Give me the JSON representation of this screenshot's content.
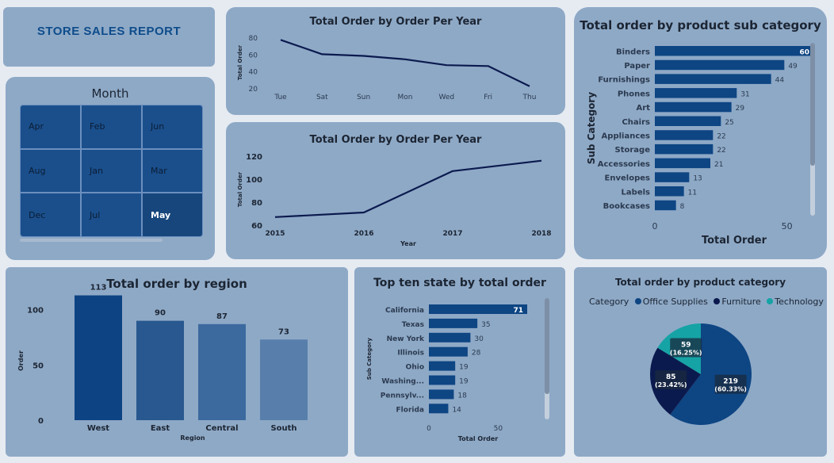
{
  "header": {
    "title": "STORE SALES REPORT"
  },
  "month_slicer": {
    "title": "Month",
    "cells": [
      "Apr",
      "Feb",
      "Jun",
      "Aug",
      "Jan",
      "Mar",
      "Dec",
      "Jul",
      "May"
    ],
    "selected": "May"
  },
  "chart_data": [
    {
      "id": "weekday",
      "type": "line",
      "title": "Total Order by Order Per Year",
      "xlabel": "",
      "ylabel": "Total Order",
      "categories": [
        "Tue",
        "Sat",
        "Sun",
        "Mon",
        "Wed",
        "Fri",
        "Thu"
      ],
      "values": [
        77,
        60,
        58,
        54,
        47,
        46,
        22
      ],
      "yticks": [
        "20",
        "40",
        "60",
        "80"
      ],
      "ylim": [
        18,
        82
      ],
      "color": "#0b1a4e"
    },
    {
      "id": "year",
      "type": "line",
      "title": "Total Order by Order Per Year",
      "xlabel": "Year",
      "ylabel": "Total Order",
      "categories": [
        "2015",
        "2016",
        "2017",
        "2018"
      ],
      "values": [
        67,
        71,
        107,
        116
      ],
      "yticks": [
        "60",
        "80",
        "100",
        "120"
      ],
      "ylim": [
        60,
        122
      ],
      "color": "#0b1a4e"
    },
    {
      "id": "subcategory",
      "type": "bar",
      "orientation": "horizontal",
      "title": "Total order by product sub category",
      "xlabel": "Total Order",
      "ylabel": "Sub Category",
      "categories": [
        "Binders",
        "Paper",
        "Furnishings",
        "Phones",
        "Art",
        "Chairs",
        "Appliances",
        "Storage",
        "Accessories",
        "Envelopes",
        "Labels",
        "Bookcases"
      ],
      "values": [
        60,
        49,
        44,
        31,
        29,
        25,
        22,
        22,
        21,
        13,
        11,
        8
      ],
      "xticks": [
        "0",
        "50"
      ],
      "xlim": [
        0,
        60
      ],
      "color": "#0e4583"
    },
    {
      "id": "region",
      "type": "bar",
      "title": "Total order by region",
      "xlabel": "Region",
      "ylabel": "Order",
      "categories": [
        "West",
        "East",
        "Central",
        "South"
      ],
      "values": [
        113,
        90,
        87,
        73
      ],
      "yticks": [
        "0",
        "50",
        "100"
      ],
      "ylim": [
        0,
        117
      ],
      "colors": [
        "#0d4383",
        "#28588f",
        "#3c6a9f",
        "#587fab"
      ]
    },
    {
      "id": "state",
      "type": "bar",
      "orientation": "horizontal",
      "title": "Top ten state by total order",
      "xlabel": "Total Order",
      "ylabel": "Sub Category",
      "categories": [
        "California",
        "Texas",
        "New York",
        "Illinois",
        "Ohio",
        "Washing...",
        "Pennsylv...",
        "Florida"
      ],
      "values": [
        71,
        35,
        30,
        28,
        19,
        19,
        18,
        14
      ],
      "xticks": [
        "0",
        "50"
      ],
      "xlim": [
        0,
        71
      ],
      "color": "#0e4583"
    },
    {
      "id": "category",
      "type": "pie",
      "title": "Total order by product category",
      "legend_title": "Category",
      "legend_position": "top",
      "slices": [
        {
          "name": "Office Supplies",
          "value": 219,
          "label": "219",
          "pct": "(60.33%)",
          "color": "#0e4583"
        },
        {
          "name": "Furniture",
          "value": 85,
          "label": "85",
          "pct": "(23.42%)",
          "color": "#0b1a4e"
        },
        {
          "name": "Technology",
          "value": 59,
          "label": "59",
          "pct": "(16.25%)",
          "color": "#16a3a5"
        }
      ]
    }
  ]
}
